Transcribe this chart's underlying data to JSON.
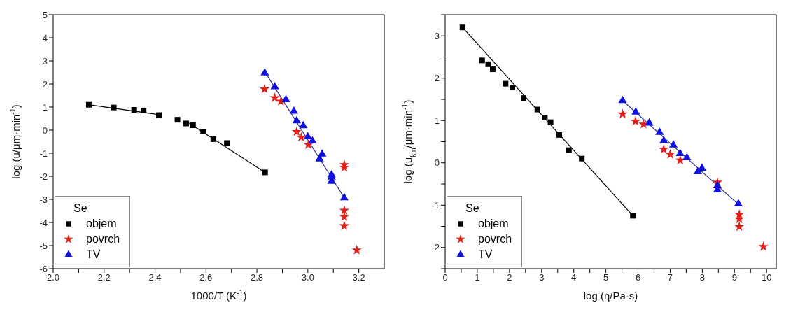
{
  "chart_data": [
    {
      "type": "scatter",
      "xlabel": "1000/T (K$^{-1}$)",
      "ylabel": "log (u/μm·min$^{-1}$)",
      "legend_title": "Se",
      "legend": "bottom left",
      "xlim": [
        2.0,
        3.3
      ],
      "ylim": [
        -6,
        5
      ],
      "xticks": [
        {
          "value": 2.0,
          "label": "2.0"
        },
        {
          "value": 2.1,
          "label": null
        },
        2.2,
        {
          "value": 2.3,
          "label": null
        },
        2.4,
        {
          "value": 2.5,
          "label": null
        },
        2.6,
        {
          "value": 2.7,
          "label": null
        },
        2.8,
        {
          "value": 2.9,
          "label": null
        },
        {
          "value": 3.0,
          "label": "3.0"
        },
        {
          "value": 3.1,
          "label": null
        },
        3.2
      ],
      "yticks": [
        -6,
        -5,
        -4,
        -3,
        -2,
        -1,
        0,
        1,
        2,
        3,
        4,
        5
      ],
      "series": [
        {
          "name": "objem",
          "color": "#000000",
          "marker": "square",
          "x": [
            2.14,
            2.238,
            2.318,
            2.355,
            2.415,
            2.488,
            2.522,
            2.549,
            2.589,
            2.629,
            2.682,
            2.832
          ],
          "values": [
            1.1,
            0.98,
            0.88,
            0.85,
            0.65,
            0.45,
            0.29,
            0.21,
            -0.06,
            -0.39,
            -0.56,
            -1.83
          ]
        },
        {
          "name": "povrch",
          "color": "#e0201b",
          "marker": "star",
          "x": [
            2.83,
            2.87,
            2.894,
            2.956,
            2.974,
            3.002,
            3.143,
            3.143,
            3.143,
            3.143,
            3.143,
            3.192
          ],
          "values": [
            1.78,
            1.4,
            1.25,
            -0.07,
            -0.31,
            -0.63,
            -1.5,
            -1.62,
            -3.48,
            -3.75,
            -4.15,
            -5.2
          ]
        },
        {
          "name": "TV",
          "color": "#1010e0",
          "marker": "triangle",
          "x": [
            2.831,
            2.87,
            2.914,
            2.945,
            2.956,
            2.982,
            3.0,
            3.018,
            3.056,
            3.046,
            3.093,
            3.093,
            3.093,
            3.143
          ],
          "values": [
            2.48,
            1.88,
            1.32,
            0.82,
            0.4,
            0.19,
            -0.29,
            -0.47,
            -1.04,
            -1.25,
            -1.94,
            -2.04,
            -2.22,
            -2.93
          ]
        },
        {
          "type": "line",
          "color": "#000000",
          "marker": "none",
          "x": [
            2.14,
            2.415
          ],
          "values": [
            1.1,
            0.67
          ]
        },
        {
          "type": "line",
          "color": "#000000",
          "marker": "none",
          "x": [
            2.52,
            2.832
          ],
          "values": [
            0.4,
            -1.83
          ]
        },
        {
          "type": "line",
          "color": "#303090",
          "marker": "none",
          "x": [
            2.83,
            3.143
          ],
          "values": [
            2.55,
            -2.93
          ]
        }
      ]
    },
    {
      "type": "scatter",
      "xlabel": "log (η/Pa·s)",
      "ylabel": "log (u$_{kin}$/μm·min$^{-1}$)",
      "legend_title": "Se",
      "legend": "bottom left",
      "xlim": [
        0,
        10.3
      ],
      "ylim": [
        -2.5,
        3.5
      ],
      "xticks": [
        0,
        {
          "value": 0.5,
          "label": null
        },
        1,
        {
          "value": 1.5,
          "label": null
        },
        2,
        {
          "value": 2.5,
          "label": null
        },
        3,
        {
          "value": 3.5,
          "label": null
        },
        4,
        {
          "value": 4.5,
          "label": null
        },
        5,
        {
          "value": 5.5,
          "label": null
        },
        6,
        {
          "value": 6.5,
          "label": null
        },
        7,
        {
          "value": 7.5,
          "label": null
        },
        8,
        {
          "value": 8.5,
          "label": null
        },
        9,
        {
          "value": 9.5,
          "label": null
        },
        10
      ],
      "yticks": [
        {
          "value": -2.5,
          "label": null
        },
        -2,
        {
          "value": -1.5,
          "label": null
        },
        -1,
        {
          "value": -0.5,
          "label": null
        },
        0,
        {
          "value": 0.5,
          "label": null
        },
        1,
        {
          "value": 1.5,
          "label": null
        },
        2,
        {
          "value": 2.5,
          "label": null
        },
        3,
        {
          "value": 3.5,
          "label": null
        }
      ],
      "series": [
        {
          "name": "objem",
          "color": "#000000",
          "marker": "square",
          "x": [
            0.54,
            1.15,
            1.34,
            1.48,
            1.88,
            2.09,
            2.44,
            2.87,
            3.1,
            3.28,
            3.55,
            3.85,
            4.25,
            5.84
          ],
          "values": [
            3.2,
            2.42,
            2.33,
            2.21,
            1.87,
            1.78,
            1.53,
            1.26,
            1.07,
            0.96,
            0.66,
            0.3,
            0.1,
            -1.25
          ]
        },
        {
          "name": "povrch",
          "color": "#e0201b",
          "marker": "star",
          "x": [
            5.52,
            5.92,
            6.17,
            6.8,
            7.0,
            7.31,
            8.47,
            9.15,
            9.15,
            9.15,
            9.9
          ],
          "values": [
            1.15,
            0.98,
            0.91,
            0.32,
            0.2,
            0.06,
            -0.46,
            -1.22,
            -1.33,
            -1.51,
            -1.98
          ]
        },
        {
          "name": "TV",
          "color": "#1010e0",
          "marker": "triangle",
          "x": [
            5.52,
            5.93,
            6.35,
            6.67,
            6.8,
            7.1,
            7.31,
            7.52,
            7.86,
            7.99,
            8.47,
            8.47,
            9.12
          ],
          "values": [
            1.47,
            1.2,
            0.94,
            0.72,
            0.52,
            0.42,
            0.22,
            0.12,
            -0.21,
            -0.13,
            -0.54,
            -0.64,
            -0.97
          ]
        },
        {
          "type": "line",
          "color": "#000000",
          "marker": "none",
          "x": [
            0.54,
            5.84
          ],
          "values": [
            3.2,
            -1.25
          ]
        },
        {
          "type": "line",
          "color": "#303090",
          "marker": "none",
          "x": [
            5.52,
            9.12
          ],
          "values": [
            1.47,
            -0.98
          ]
        }
      ]
    }
  ]
}
